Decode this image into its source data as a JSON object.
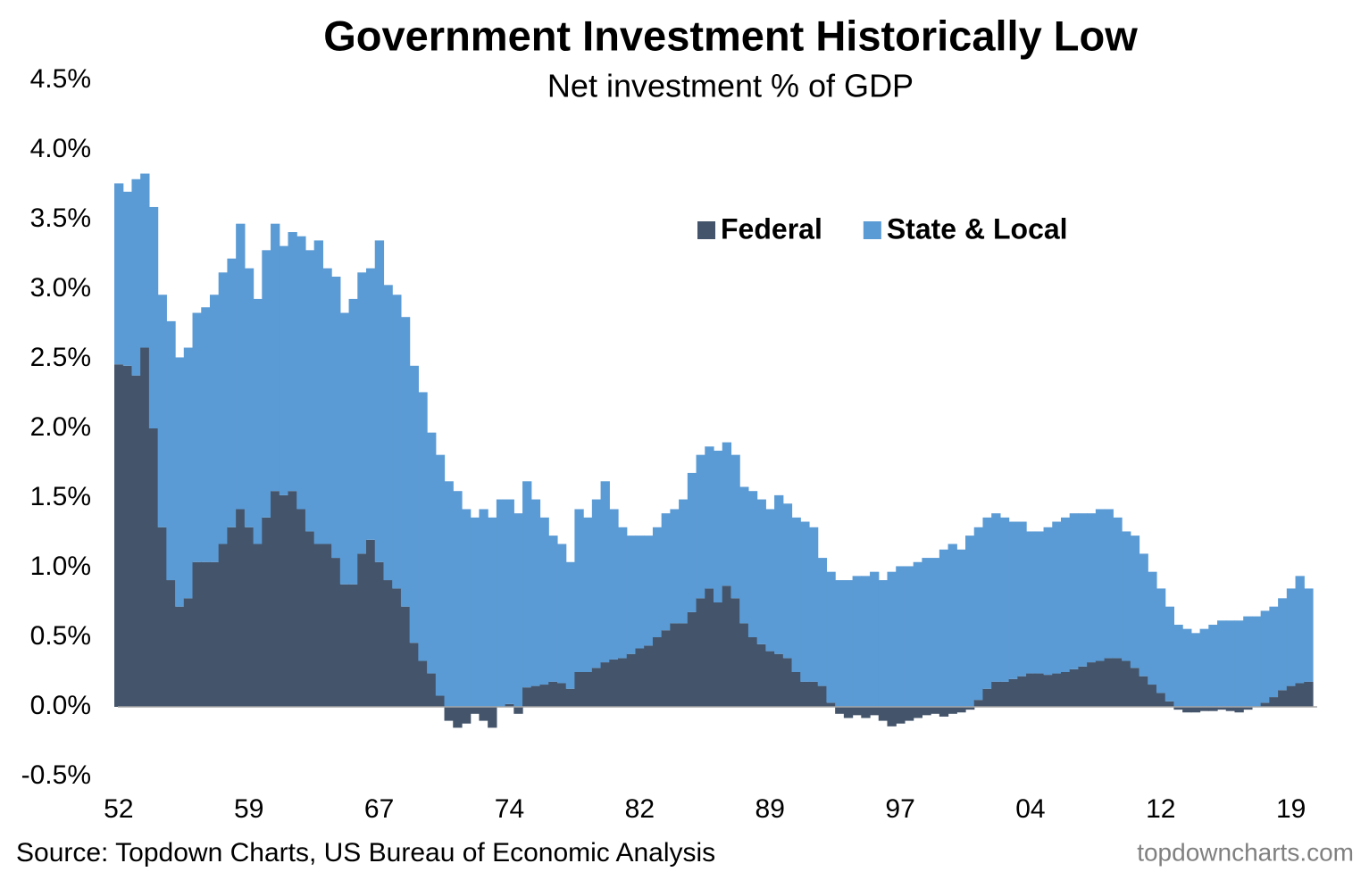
{
  "chart_data": {
    "type": "stacked_bar",
    "title": "Government Investment Historically Low",
    "subtitle": "Net investment % of GDP",
    "source": "Source: Topdown Charts, US Bureau of Economic Analysis",
    "watermark": "topdowncharts.com",
    "categories": [
      "52",
      null,
      null,
      null,
      null,
      null,
      null,
      null,
      null,
      null,
      null,
      null,
      null,
      null,
      null,
      "59",
      null,
      null,
      null,
      null,
      null,
      null,
      null,
      null,
      null,
      null,
      null,
      null,
      null,
      null,
      "67",
      null,
      null,
      null,
      null,
      null,
      null,
      null,
      null,
      null,
      null,
      null,
      null,
      null,
      null,
      "74",
      null,
      null,
      null,
      null,
      null,
      null,
      null,
      null,
      null,
      null,
      null,
      null,
      null,
      null,
      "82",
      null,
      null,
      null,
      null,
      null,
      null,
      null,
      null,
      null,
      null,
      null,
      null,
      null,
      null,
      "89",
      null,
      null,
      null,
      null,
      null,
      null,
      null,
      null,
      null,
      null,
      null,
      null,
      null,
      null,
      "97",
      null,
      null,
      null,
      null,
      null,
      null,
      null,
      null,
      null,
      null,
      null,
      null,
      null,
      null,
      "04",
      null,
      null,
      null,
      null,
      null,
      null,
      null,
      null,
      null,
      null,
      null,
      null,
      null,
      null,
      "12",
      null,
      null,
      null,
      null,
      null,
      null,
      null,
      null,
      null,
      null,
      null,
      null,
      null,
      null,
      "19",
      null,
      null
    ],
    "series": [
      {
        "name": "Federal",
        "color": "#44546a",
        "values": [
          2.46,
          2.45,
          2.38,
          2.58,
          2.0,
          1.29,
          0.91,
          0.72,
          0.78,
          1.04,
          1.04,
          1.04,
          1.17,
          1.29,
          1.42,
          1.29,
          1.17,
          1.36,
          1.55,
          1.52,
          1.55,
          1.42,
          1.26,
          1.17,
          1.17,
          1.07,
          0.88,
          0.88,
          1.1,
          1.2,
          1.04,
          0.91,
          0.85,
          0.72,
          0.46,
          0.33,
          0.24,
          0.08,
          -0.1,
          -0.15,
          -0.12,
          -0.05,
          -0.1,
          -0.15,
          0.0,
          0.02,
          -0.05,
          0.14,
          0.15,
          0.16,
          0.18,
          0.17,
          0.13,
          0.25,
          0.25,
          0.28,
          0.32,
          0.34,
          0.35,
          0.38,
          0.42,
          0.44,
          0.5,
          0.55,
          0.6,
          0.6,
          0.68,
          0.78,
          0.85,
          0.75,
          0.87,
          0.78,
          0.6,
          0.5,
          0.45,
          0.4,
          0.38,
          0.35,
          0.25,
          0.18,
          0.18,
          0.15,
          0.03,
          -0.05,
          -0.08,
          -0.06,
          -0.08,
          -0.06,
          -0.1,
          -0.14,
          -0.12,
          -0.1,
          -0.08,
          -0.06,
          -0.05,
          -0.07,
          -0.05,
          -0.04,
          -0.02,
          0.05,
          0.13,
          0.18,
          0.18,
          0.2,
          0.22,
          0.24,
          0.24,
          0.23,
          0.24,
          0.25,
          0.27,
          0.29,
          0.32,
          0.33,
          0.35,
          0.35,
          0.33,
          0.28,
          0.22,
          0.16,
          0.1,
          0.04,
          -0.02,
          -0.04,
          -0.04,
          -0.03,
          -0.03,
          -0.02,
          -0.03,
          -0.04,
          -0.02,
          0.0,
          0.03,
          0.07,
          0.12,
          0.15,
          0.17,
          0.18
        ]
      },
      {
        "name": "State & Local",
        "color": "#5b9bd5",
        "values": [
          1.3,
          1.25,
          1.41,
          1.25,
          1.59,
          1.67,
          1.86,
          1.79,
          1.8,
          1.79,
          1.83,
          1.92,
          1.95,
          1.93,
          2.05,
          1.86,
          1.76,
          1.92,
          1.92,
          1.79,
          1.86,
          1.96,
          2.02,
          2.18,
          1.98,
          2.02,
          1.95,
          2.05,
          2.02,
          1.95,
          2.31,
          2.12,
          2.11,
          2.08,
          1.99,
          1.93,
          1.73,
          1.73,
          1.62,
          1.55,
          1.42,
          1.36,
          1.42,
          1.36,
          1.49,
          1.47,
          1.39,
          1.48,
          1.34,
          1.2,
          1.05,
          1.0,
          0.91,
          1.17,
          1.11,
          1.21,
          1.3,
          1.08,
          0.94,
          0.85,
          0.81,
          0.79,
          0.79,
          0.84,
          0.82,
          0.89,
          1.0,
          1.03,
          1.02,
          1.09,
          1.03,
          1.03,
          0.98,
          1.05,
          1.04,
          1.02,
          1.14,
          1.11,
          1.11,
          1.15,
          1.11,
          0.92,
          0.94,
          0.91,
          0.91,
          0.94,
          0.94,
          0.97,
          0.91,
          0.97,
          1.01,
          1.01,
          1.04,
          1.07,
          1.07,
          1.13,
          1.17,
          1.13,
          1.23,
          1.24,
          1.23,
          1.21,
          1.18,
          1.13,
          1.11,
          1.02,
          1.02,
          1.06,
          1.09,
          1.11,
          1.12,
          1.1,
          1.07,
          1.09,
          1.07,
          1.01,
          0.93,
          0.95,
          0.88,
          0.81,
          0.75,
          0.68,
          0.59,
          0.56,
          0.53,
          0.56,
          0.59,
          0.62,
          0.62,
          0.62,
          0.65,
          0.65,
          0.66,
          0.65,
          0.66,
          0.7,
          0.77,
          0.67
        ]
      }
    ],
    "ylim": [
      -0.5,
      4.5
    ],
    "yticks": [
      {
        "value": -0.5,
        "label": "-0.5%"
      },
      {
        "value": 0,
        "label": "0.0%"
      },
      {
        "value": 0.5,
        "label": "0.5%"
      },
      {
        "value": 1,
        "label": "1.0%"
      },
      {
        "value": 1.5,
        "label": "1.5%"
      },
      {
        "value": 2,
        "label": "2.0%"
      },
      {
        "value": 2.5,
        "label": "2.5%"
      },
      {
        "value": 3,
        "label": "3.0%"
      },
      {
        "value": 3.5,
        "label": "3.5%"
      },
      {
        "value": 4,
        "label": "4.0%"
      },
      {
        "value": 4.5,
        "label": "4.5%"
      }
    ],
    "grid": false
  }
}
